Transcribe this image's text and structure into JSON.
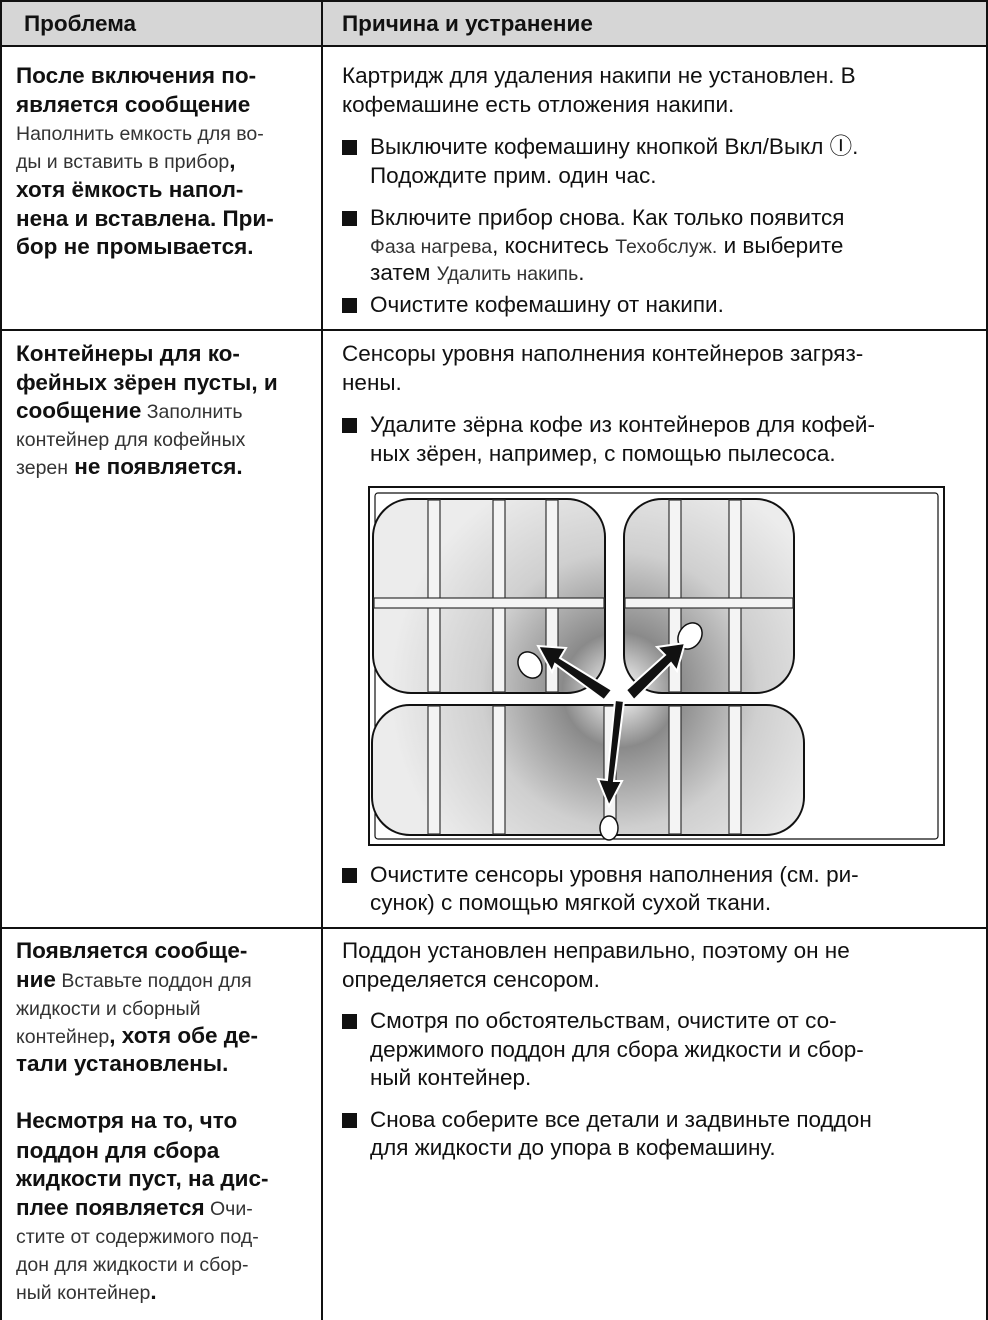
{
  "header": [
    "Проблема",
    "Причина и устранение"
  ],
  "rows": [
    {
      "problem": [
        "После включения по-",
        "является сообщение",
        "Наполнить емкость для во-",
        [
          "ды и вставить в прибор",
          ","
        ],
        "хотя ёмкость напол-",
        "нена и вставлена. При-",
        "бор не промывается."
      ],
      "solution": [
        "Картридж для удаления накипи не установлен. В",
        "кофемашине есть отложения накипи.",
        "Выключите кофемашину кнопкой Вкл/Выкл Ⓘ.",
        "Подождите прим. один час.",
        "Включите прибор снова. Как только появится",
        [
          "Фаза нагрева",
          ", коснитесь ",
          "Техобслуж.",
          " и выберите"
        ],
        [
          "затем ",
          "Удалить накипь",
          "."
        ],
        "Очистите кофемашину от накипи."
      ]
    },
    {
      "problem": [
        "Контейнеры для ко-",
        "фейных зёрен пусты, и",
        [
          "сообщение",
          " Заполнить"
        ],
        "контейнер для кофейных",
        [
          "зерен",
          " не появляется."
        ]
      ],
      "solution": [
        "Сенсоры уровня наполнения контейнеров загряз-",
        "нены.",
        "Удалите зёрна кофе из контейнеров для кофей-",
        "ных зёрен, например, с помощью пылесоса.",
        "Очистите сенсоры уровня наполнения (см. ри-",
        "сунок) с помощью мягкой сухой ткани."
      ]
    },
    {
      "problem": [
        "Появляется сообще-",
        [
          "ние",
          " Вставьте поддон для"
        ],
        "жидкости и сборный",
        [
          "контейнер",
          ", хотя обе де-"
        ],
        "тали установлены.",
        "Несмотря на то, что",
        "поддон для сбора",
        "жидкости пуст, на дис-",
        [
          "плее появляется",
          " Очи-"
        ],
        "стите от содержимого под-",
        "дон для жидкости и сбор-",
        [
          "ный контейнер",
          "."
        ]
      ],
      "solution": [
        "Поддон установлен неправильно, поэтому он не",
        "определяется сенсором.",
        "Смотря по обстоятельствам, очистите от со-",
        "держимого поддон для сбора жидкости и сбор-",
        "ный контейнер.",
        "Снова соберите все детали и задвиньте поддон",
        "для жидкости до упора в кофемашину."
      ]
    }
  ]
}
